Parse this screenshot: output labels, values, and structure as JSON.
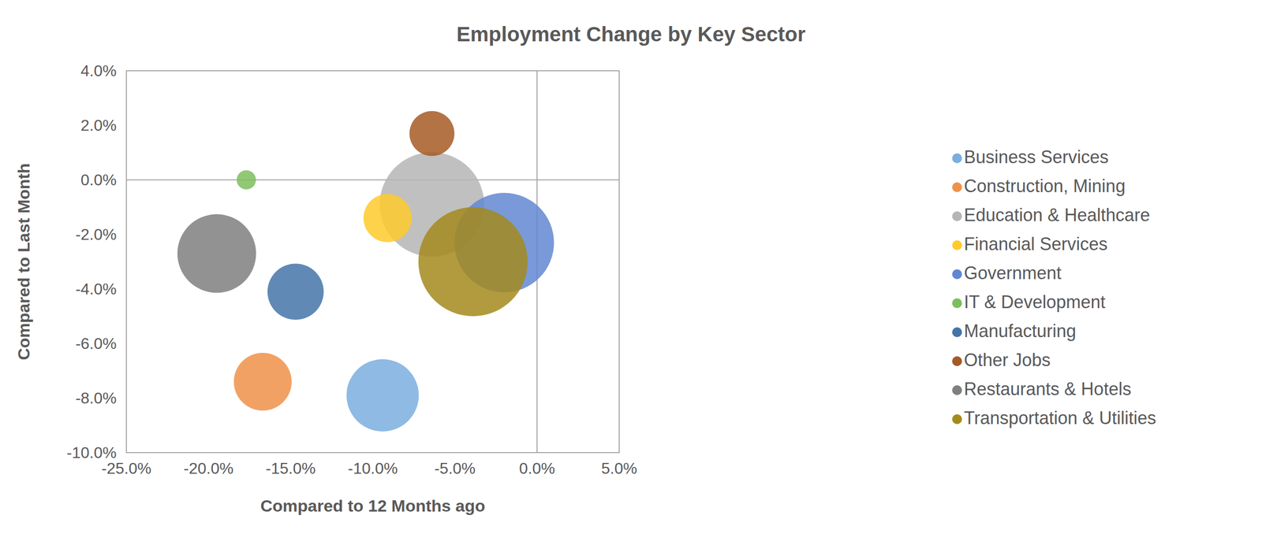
{
  "chart_data": {
    "type": "bubble",
    "title": "Employment Change by Key Sector",
    "x_label": "Compared to 12 Months ago",
    "y_label": "Compared to Last Month",
    "xlim": [
      -25,
      5
    ],
    "ylim": [
      -10,
      4
    ],
    "xticks": [
      {
        "value": -25,
        "label": "-25.0%"
      },
      {
        "value": -20,
        "label": "-20.0%"
      },
      {
        "value": -15,
        "label": "-15.0%"
      },
      {
        "value": -10,
        "label": "-10.0%"
      },
      {
        "value": -5,
        "label": "-5.0%"
      },
      {
        "value": 0,
        "label": "0.0%"
      },
      {
        "value": 5,
        "label": "5.0%"
      }
    ],
    "yticks": [
      {
        "value": -10,
        "label": "-10.0%"
      },
      {
        "value": -8,
        "label": "-8.0%"
      },
      {
        "value": -6,
        "label": "-6.0%"
      },
      {
        "value": -4,
        "label": "-4.0%"
      },
      {
        "value": -2,
        "label": "-2.0%"
      },
      {
        "value": 0,
        "label": "0.0%"
      },
      {
        "value": 2,
        "label": "2.0%"
      },
      {
        "value": 4,
        "label": "4.0%"
      }
    ],
    "grid": false,
    "legend": "right",
    "series": [
      {
        "name": "Business Services",
        "color": "#7aaedf",
        "x": [
          -9.4
        ],
        "y": [
          -7.9
        ],
        "size": [
          2025
        ]
      },
      {
        "name": "Construction, Mining",
        "color": "#f0914a",
        "x": [
          -16.7
        ],
        "y": [
          -7.4
        ],
        "size": [
          1296
        ]
      },
      {
        "name": "Education & Healthcare",
        "color": "#b5b5b5",
        "x": [
          -6.4
        ],
        "y": [
          -0.9
        ],
        "size": [
          4225
        ]
      },
      {
        "name": "Financial Services",
        "color": "#ffca2c",
        "x": [
          -9.1
        ],
        "y": [
          -1.4
        ],
        "size": [
          900
        ]
      },
      {
        "name": "Government",
        "color": "#6287d2",
        "x": [
          -2.0
        ],
        "y": [
          -2.3
        ],
        "size": [
          3844
        ]
      },
      {
        "name": "IT & Development",
        "color": "#7dbe5e",
        "x": [
          -17.7
        ],
        "y": [
          0.0
        ],
        "size": [
          144
        ]
      },
      {
        "name": "Manufacturing",
        "color": "#4475a8",
        "x": [
          -14.7
        ],
        "y": [
          -4.1
        ],
        "size": [
          1225
        ]
      },
      {
        "name": "Other Jobs",
        "color": "#a65a25",
        "x": [
          -6.4
        ],
        "y": [
          1.7
        ],
        "size": [
          784
        ]
      },
      {
        "name": "Restaurants & Hotels",
        "color": "#7f7f7f",
        "x": [
          -19.5
        ],
        "y": [
          -2.7
        ],
        "size": [
          2401
        ]
      },
      {
        "name": "Transportation & Utilities",
        "color": "#a38a1c",
        "x": [
          -3.9
        ],
        "y": [
          -3.0
        ],
        "size": [
          4624
        ]
      }
    ]
  }
}
